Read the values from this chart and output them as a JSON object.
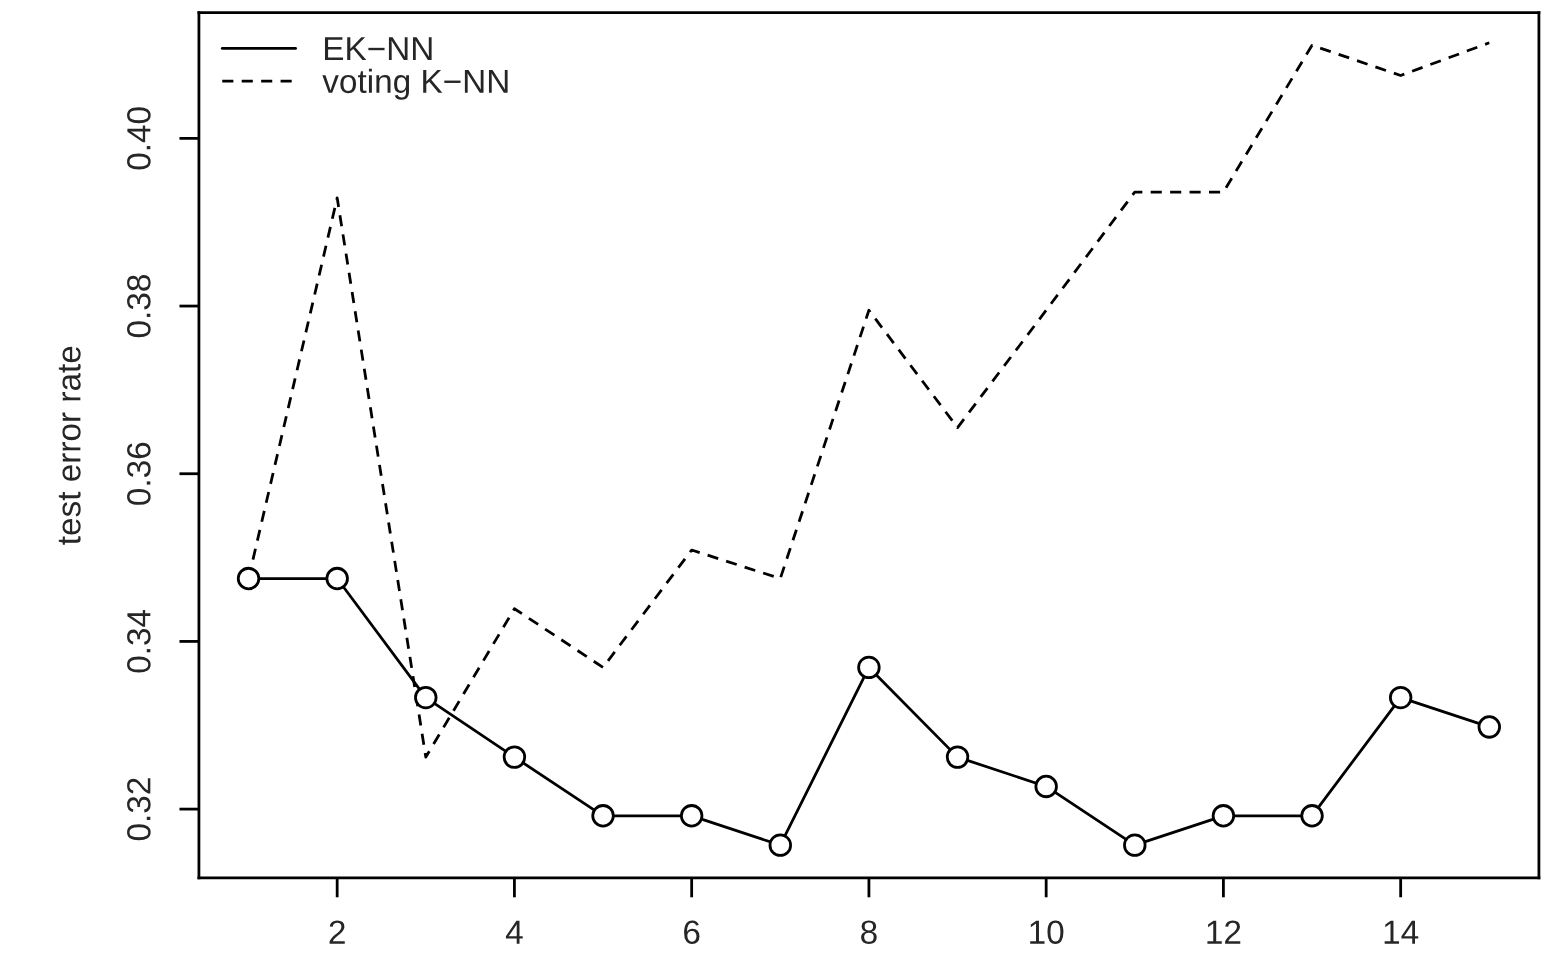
{
  "chart_data": {
    "type": "line",
    "ylabel": "test error rate",
    "x": [
      1,
      2,
      3,
      4,
      5,
      6,
      7,
      8,
      9,
      10,
      11,
      12,
      13,
      14,
      15
    ],
    "series": [
      {
        "name": "EK−NN",
        "color": "#000000",
        "marker": "circle",
        "line_style": "solid",
        "values": [
          0.3475,
          0.3475,
          0.3333,
          0.3262,
          0.3192,
          0.3192,
          0.3157,
          0.3369,
          0.3262,
          0.3227,
          0.3157,
          0.3192,
          0.3192,
          0.3333,
          0.3298
        ]
      },
      {
        "name": "voting K−NN",
        "color": "#000000",
        "marker": "none",
        "line_style": "dashed",
        "values": [
          0.3475,
          0.3929,
          0.3262,
          0.3439,
          0.3369,
          0.3509,
          0.3475,
          0.3795,
          0.3655,
          0.3795,
          0.3936,
          0.3936,
          0.4111,
          0.4075,
          0.4114
        ]
      }
    ],
    "xlim": [
      0.44,
      15.56
    ],
    "xticks": [
      2,
      4,
      6,
      8,
      10,
      12,
      14
    ],
    "ylim": [
      0.3118,
      0.415
    ],
    "yticks": [
      0.32,
      0.34,
      0.36,
      0.38,
      {
        "value": 0.4,
        "label": "0.40"
      }
    ],
    "grid": false,
    "legend": "top left"
  }
}
